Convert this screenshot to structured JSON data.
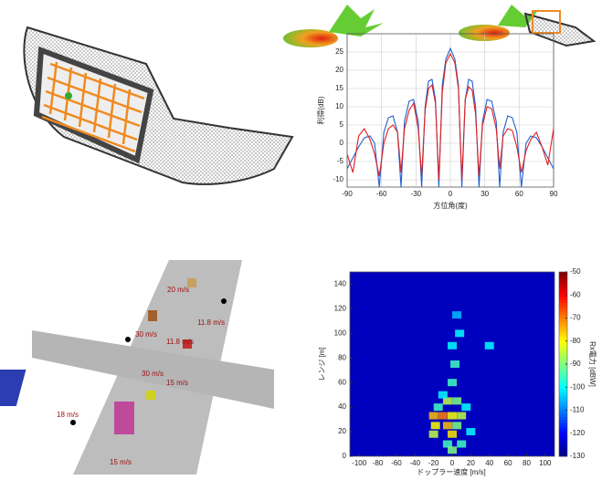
{
  "chart_data": [
    {
      "type": "line",
      "xlabel": "方位角(度)",
      "ylabel": "利得(dB)",
      "x": [
        -90,
        -85,
        -80,
        -75,
        -70,
        -66,
        -62,
        -58,
        -54,
        -50,
        -46,
        -43,
        -40,
        -36,
        -32,
        -28,
        -25,
        -22,
        -19,
        -16,
        -13,
        -10,
        -7,
        -4,
        0,
        4,
        7,
        10,
        13,
        16,
        19,
        22,
        25,
        28,
        32,
        36,
        40,
        43,
        46,
        50,
        54,
        58,
        62,
        66,
        70,
        75,
        80,
        85,
        90
      ],
      "series": [
        {
          "color": "#1f5fd0",
          "values": [
            -7,
            -4,
            -1,
            1.5,
            2,
            0,
            -12,
            3,
            7,
            7.5,
            3,
            -12,
            6,
            11.5,
            12,
            6,
            -12,
            10,
            17,
            17.5,
            12,
            -12,
            16,
            23,
            26,
            23,
            16,
            -12,
            12,
            17.5,
            17,
            10,
            -12,
            6,
            12,
            11.5,
            6,
            -12,
            3,
            7.5,
            7,
            3,
            -12,
            0,
            2,
            1.5,
            -1,
            -4,
            -7
          ]
        },
        {
          "color": "#e02020",
          "values": [
            -3,
            -8,
            2,
            4,
            1,
            -3,
            -9,
            0,
            4,
            5,
            3,
            -8,
            4,
            9,
            11,
            4,
            -9,
            9,
            15,
            16,
            11,
            -10,
            14,
            22,
            24.5,
            22,
            15,
            -10,
            12,
            15.5,
            14.5,
            8,
            -9,
            5,
            10,
            9.5,
            4,
            -7,
            2,
            4,
            3.5,
            -1,
            -8,
            -2,
            1,
            3,
            -1,
            -6,
            4
          ]
        }
      ],
      "xlim": [
        -90,
        90
      ],
      "xticks": [
        -90,
        -60,
        -30,
        0,
        30,
        60,
        90
      ],
      "ylim": [
        -12,
        30
      ],
      "yticks": [
        -10,
        -5,
        0,
        5,
        10,
        15,
        20,
        25
      ],
      "grid": true
    },
    {
      "type": "heatmap",
      "xlabel": "ドップラー速度 [m/s]",
      "ylabel": "レンジ [m]",
      "colorbar_label": "Rx電力 [dBW]",
      "xlim": [
        -110,
        110
      ],
      "xticks": [
        -100,
        -80,
        -60,
        -40,
        -20,
        0,
        20,
        40,
        60,
        80,
        100
      ],
      "ylim": [
        0,
        150
      ],
      "yticks": [
        0,
        20,
        40,
        60,
        80,
        100,
        120,
        140
      ],
      "clim": [
        -130,
        -50
      ],
      "cticks": [
        -130,
        -120,
        -110,
        -100,
        -90,
        -80,
        -70,
        -60,
        -50
      ],
      "background": -125,
      "spots": [
        {
          "x": -20,
          "y": 33,
          "value": -75
        },
        {
          "x": -10,
          "y": 33,
          "value": -70
        },
        {
          "x": 0,
          "y": 33,
          "value": -80
        },
        {
          "x": 10,
          "y": 33,
          "value": -85
        },
        {
          "x": -18,
          "y": 25,
          "value": -80
        },
        {
          "x": -5,
          "y": 25,
          "value": -75
        },
        {
          "x": 5,
          "y": 25,
          "value": -90
        },
        {
          "x": -20,
          "y": 18,
          "value": -85
        },
        {
          "x": 0,
          "y": 18,
          "value": -78
        },
        {
          "x": -5,
          "y": 45,
          "value": -85
        },
        {
          "x": 5,
          "y": 45,
          "value": -90
        },
        {
          "x": -15,
          "y": 40,
          "value": -95
        },
        {
          "x": 0,
          "y": 60,
          "value": -95
        },
        {
          "x": 3,
          "y": 75,
          "value": -95
        },
        {
          "x": 0,
          "y": 90,
          "value": -100
        },
        {
          "x": 8,
          "y": 100,
          "value": -100
        },
        {
          "x": 5,
          "y": 115,
          "value": -105
        },
        {
          "x": -5,
          "y": 10,
          "value": -95
        },
        {
          "x": 10,
          "y": 10,
          "value": -95
        },
        {
          "x": 0,
          "y": 5,
          "value": -90
        },
        {
          "x": -10,
          "y": 50,
          "value": -100
        },
        {
          "x": 15,
          "y": 40,
          "value": -100
        },
        {
          "x": 40,
          "y": 90,
          "value": -100
        },
        {
          "x": 20,
          "y": 20,
          "value": -100
        }
      ]
    }
  ],
  "scene": {
    "speed_labels": [
      "20 m/s",
      "30 m/s",
      "11.8 m/s",
      "11.8 m/s",
      "30 m/s",
      "15 m/s",
      "18 m/s",
      "15 m/s"
    ]
  }
}
